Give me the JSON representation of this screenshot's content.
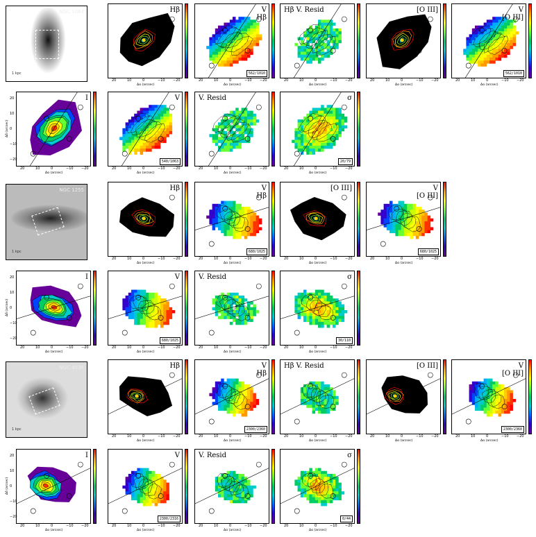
{
  "figure": {
    "axis_labels": {
      "x": "Δα (arcsec)",
      "y": "Δδ (arcsec)"
    },
    "ticks": {
      "x": [
        "20",
        "10",
        "0",
        "−10",
        "−20"
      ],
      "y": [
        "20",
        "10",
        "0",
        "−10",
        "−20"
      ]
    },
    "galaxies": [
      {
        "id": "galaxy-1",
        "image_label": "NGC 1064",
        "scale_label": "1 kpc",
        "gas_row": [
          {
            "kind": "flux",
            "label": "Hβ",
            "range": ""
          },
          {
            "kind": "velocity",
            "label": "V\nHβ",
            "range": "562/1010"
          },
          {
            "kind": "residual",
            "label": "Hβ V. Resid",
            "range": ""
          },
          {
            "kind": "flux",
            "label": "[O III]",
            "range": ""
          },
          {
            "kind": "velocity",
            "label": "V\n[O III]",
            "range": "562/1010"
          }
        ],
        "stellar_row": [
          {
            "kind": "intensity",
            "label": "I",
            "range": ""
          },
          {
            "kind": "velocity",
            "label": "V",
            "range": "540/1063"
          },
          {
            "kind": "residual",
            "label": "V. Resid",
            "range": ""
          },
          {
            "kind": "dispersion",
            "label": "σ",
            "range": "20/79"
          }
        ]
      },
      {
        "id": "galaxy-2",
        "image_label": "NGC 1255",
        "scale_label": "1 kpc",
        "gas_row": [
          {
            "kind": "flux",
            "label": "Hβ",
            "range": ""
          },
          {
            "kind": "velocity",
            "label": "V\nHβ",
            "range": "680/1025"
          },
          {
            "kind": "flux",
            "label": "[O III]",
            "range": ""
          },
          {
            "kind": "velocity",
            "label": "V\n[O III]",
            "range": "680/1025"
          }
        ],
        "stellar_row": [
          {
            "kind": "intensity",
            "label": "I",
            "range": ""
          },
          {
            "kind": "velocity",
            "label": "V",
            "range": "680/1025"
          },
          {
            "kind": "residual",
            "label": "V. Resid",
            "range": ""
          },
          {
            "kind": "dispersion",
            "label": "σ",
            "range": "30/110"
          }
        ]
      },
      {
        "id": "galaxy-3",
        "image_label": "NGC 4536",
        "scale_label": "1 kpc",
        "gas_row": [
          {
            "kind": "flux",
            "label": "Hβ",
            "range": ""
          },
          {
            "kind": "velocity",
            "label": "V\nHβ",
            "range": "2300/2360"
          },
          {
            "kind": "residual",
            "label": "Hβ V. Resid",
            "range": ""
          },
          {
            "kind": "flux",
            "label": "[O III]",
            "range": ""
          },
          {
            "kind": "velocity",
            "label": "V\n[O III]",
            "range": "2300/2360"
          }
        ],
        "stellar_row": [
          {
            "kind": "intensity",
            "label": "I",
            "range": ""
          },
          {
            "kind": "velocity",
            "label": "V",
            "range": "2300/2316"
          },
          {
            "kind": "residual",
            "label": "V. Resid",
            "range": ""
          },
          {
            "kind": "dispersion",
            "label": "σ",
            "range": "0/44"
          }
        ]
      }
    ]
  }
}
